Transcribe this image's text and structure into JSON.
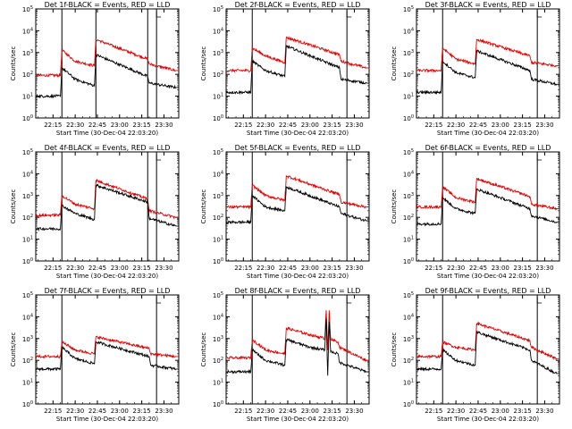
{
  "window": {
    "background": "#ffffff"
  },
  "chart_data": [
    {
      "type": "line",
      "title": "Det 1f-BLACK = Events, RED = LLD",
      "xlabel": "Start Time (30-Dec-04 22:03:20)",
      "ylabel": "Counts/sec",
      "x_ticks": [
        "22:15",
        "22:30",
        "22:45",
        "23:00",
        "23:15",
        "23:30"
      ],
      "y_ticks": [
        "10^0",
        "10^1",
        "10^2",
        "10^3",
        "10^4",
        "10^5"
      ],
      "y_log": true,
      "xlim": [
        "22:03:20",
        "23:40:00"
      ],
      "ylim": [
        1,
        100000
      ],
      "vlines": [
        "22:21:00",
        "22:44:00",
        "23:19:00",
        "23:25:00"
      ],
      "series": [
        {
          "name": "RED",
          "color": "#e00000",
          "x": [
            "22:03:20",
            "22:20:00",
            "22:21:00",
            "22:30:00",
            "22:43:00",
            "22:44:00",
            "23:19:00",
            "23:20:00",
            "23:38:00"
          ],
          "values": [
            90,
            90,
            1300,
            400,
            250,
            4000,
            500,
            300,
            150
          ]
        },
        {
          "name": "BLACK",
          "color": "#000000",
          "x": [
            "22:03:20",
            "22:20:00",
            "22:21:00",
            "22:30:00",
            "22:43:00",
            "22:44:00",
            "23:19:00",
            "23:20:00",
            "23:38:00"
          ],
          "values": [
            10,
            10,
            200,
            60,
            30,
            800,
            80,
            40,
            25
          ]
        }
      ]
    },
    {
      "type": "line",
      "title": "Det 2f-BLACK = Events, RED = LLD",
      "xlabel": "Start Time (30-Dec-04 22:03:20)",
      "ylabel": "Counts/sec",
      "x_ticks": [
        "22:15",
        "22:30",
        "22:45",
        "23:00",
        "23:15",
        "23:30"
      ],
      "y_ticks": [
        "10^0",
        "10^1",
        "10^2",
        "10^3",
        "10^4",
        "10^5"
      ],
      "y_log": true,
      "xlim": [
        "22:03:20",
        "23:40:00"
      ],
      "ylim": [
        1,
        100000
      ],
      "vlines": [
        "22:21:00",
        "23:25:00"
      ],
      "series": [
        {
          "name": "RED",
          "color": "#e00000",
          "x": [
            "22:03:20",
            "22:20:00",
            "22:21:00",
            "22:30:00",
            "22:43:00",
            "22:44:00",
            "23:20:00",
            "23:21:00",
            "23:38:00"
          ],
          "values": [
            150,
            150,
            1600,
            700,
            350,
            5000,
            800,
            400,
            200
          ]
        },
        {
          "name": "BLACK",
          "color": "#000000",
          "x": [
            "22:03:20",
            "22:20:00",
            "22:21:00",
            "22:30:00",
            "22:43:00",
            "22:44:00",
            "23:20:00",
            "23:21:00",
            "23:38:00"
          ],
          "values": [
            15,
            15,
            400,
            150,
            80,
            2000,
            200,
            60,
            40
          ]
        }
      ]
    },
    {
      "type": "line",
      "title": "Det 3f-BLACK = Events, RED = LLD",
      "xlabel": "Start Time (30-Dec-04 22:03:20)",
      "ylabel": "Counts/sec",
      "x_ticks": [
        "22:15",
        "22:30",
        "22:45",
        "23:00",
        "23:15",
        "23:30"
      ],
      "y_ticks": [
        "10^0",
        "10^1",
        "10^2",
        "10^3",
        "10^4",
        "10^5"
      ],
      "y_log": true,
      "xlim": [
        "22:03:20",
        "23:40:00"
      ],
      "ylim": [
        1,
        100000
      ],
      "vlines": [
        "22:21:00",
        "23:25:00"
      ],
      "series": [
        {
          "name": "RED",
          "color": "#e00000",
          "x": [
            "22:03:20",
            "22:20:00",
            "22:21:00",
            "22:30:00",
            "22:43:00",
            "22:44:00",
            "23:20:00",
            "23:21:00",
            "23:38:00"
          ],
          "values": [
            150,
            150,
            1600,
            500,
            300,
            4000,
            700,
            350,
            250
          ]
        },
        {
          "name": "BLACK",
          "color": "#000000",
          "x": [
            "22:03:20",
            "22:20:00",
            "22:21:00",
            "22:30:00",
            "22:43:00",
            "22:44:00",
            "23:20:00",
            "23:21:00",
            "23:38:00"
          ],
          "values": [
            15,
            15,
            400,
            120,
            70,
            1200,
            150,
            60,
            35
          ]
        }
      ]
    },
    {
      "type": "line",
      "title": "Det 4f-BLACK = Events, RED = LLD",
      "xlabel": "Start Time (30-Dec-04 22:03:20)",
      "ylabel": "Counts/sec",
      "x_ticks": [
        "22:15",
        "22:30",
        "22:45",
        "23:00",
        "23:15",
        "23:30"
      ],
      "y_ticks": [
        "10^0",
        "10^1",
        "10^2",
        "10^3",
        "10^4",
        "10^5"
      ],
      "y_log": true,
      "xlim": [
        "22:03:20",
        "23:40:00"
      ],
      "ylim": [
        1,
        100000
      ],
      "vlines": [
        "22:21:00",
        "23:19:00",
        "23:25:00"
      ],
      "series": [
        {
          "name": "RED",
          "color": "#e00000",
          "x": [
            "22:03:20",
            "22:20:00",
            "22:21:00",
            "22:30:00",
            "22:43:00",
            "22:44:00",
            "23:19:00",
            "23:20:00",
            "23:38:00"
          ],
          "values": [
            120,
            130,
            1000,
            400,
            250,
            5000,
            700,
            200,
            100
          ]
        },
        {
          "name": "BLACK",
          "color": "#000000",
          "x": [
            "22:03:20",
            "22:20:00",
            "22:21:00",
            "22:30:00",
            "22:43:00",
            "22:44:00",
            "23:19:00",
            "23:20:00",
            "23:38:00"
          ],
          "values": [
            30,
            30,
            350,
            150,
            80,
            3000,
            500,
            90,
            40
          ]
        }
      ]
    },
    {
      "type": "line",
      "title": "Det 5f-BLACK = Events, RED = LLD",
      "xlabel": "Start Time (30-Dec-04 22:03:20)",
      "ylabel": "Counts/sec",
      "x_ticks": [
        "22:15",
        "22:30",
        "22:45",
        "23:00",
        "23:15",
        "23:30"
      ],
      "y_ticks": [
        "10^0",
        "10^1",
        "10^2",
        "10^3",
        "10^4",
        "10^5"
      ],
      "y_log": true,
      "xlim": [
        "22:03:20",
        "23:40:00"
      ],
      "ylim": [
        1,
        100000
      ],
      "vlines": [
        "22:21:00",
        "23:25:00"
      ],
      "series": [
        {
          "name": "RED",
          "color": "#e00000",
          "x": [
            "22:03:20",
            "22:20:00",
            "22:21:00",
            "22:30:00",
            "22:43:00",
            "22:44:00",
            "23:20:00",
            "23:21:00",
            "23:38:00"
          ],
          "values": [
            300,
            300,
            3000,
            1000,
            600,
            8000,
            1100,
            500,
            300
          ]
        },
        {
          "name": "BLACK",
          "color": "#000000",
          "x": [
            "22:03:20",
            "22:20:00",
            "22:21:00",
            "22:30:00",
            "22:43:00",
            "22:44:00",
            "23:20:00",
            "23:21:00",
            "23:38:00"
          ],
          "values": [
            60,
            60,
            1000,
            300,
            200,
            2500,
            300,
            150,
            70
          ]
        }
      ]
    },
    {
      "type": "line",
      "title": "Det 6f-BLACK = Events, RED = LLD",
      "xlabel": "Start Time (30-Dec-04 22:03:20)",
      "ylabel": "Counts/sec",
      "x_ticks": [
        "22:15",
        "22:30",
        "22:45",
        "23:00",
        "23:15",
        "23:30"
      ],
      "y_ticks": [
        "10^0",
        "10^1",
        "10^2",
        "10^3",
        "10^4",
        "10^5"
      ],
      "y_log": true,
      "xlim": [
        "22:03:20",
        "23:40:00"
      ],
      "ylim": [
        1,
        100000
      ],
      "vlines": [
        "22:21:00",
        "23:25:00"
      ],
      "series": [
        {
          "name": "RED",
          "color": "#e00000",
          "x": [
            "22:03:20",
            "22:20:00",
            "22:21:00",
            "22:30:00",
            "22:43:00",
            "22:44:00",
            "23:20:00",
            "23:21:00",
            "23:38:00"
          ],
          "values": [
            300,
            300,
            2500,
            800,
            500,
            6000,
            900,
            400,
            250
          ]
        },
        {
          "name": "BLACK",
          "color": "#000000",
          "x": [
            "22:03:20",
            "22:20:00",
            "22:21:00",
            "22:30:00",
            "22:43:00",
            "22:44:00",
            "23:20:00",
            "23:21:00",
            "23:38:00"
          ],
          "values": [
            50,
            50,
            800,
            250,
            150,
            2000,
            250,
            120,
            60
          ]
        }
      ]
    },
    {
      "type": "line",
      "title": "Det 7f-BLACK = Events, RED = LLD",
      "xlabel": "Start Time (30-Dec-04 22:03:20)",
      "ylabel": "Counts/sec",
      "x_ticks": [
        "22:15",
        "22:30",
        "22:45",
        "23:00",
        "23:15",
        "23:30"
      ],
      "y_ticks": [
        "10^0",
        "10^1",
        "10^2",
        "10^3",
        "10^4",
        "10^5"
      ],
      "y_log": true,
      "xlim": [
        "22:03:20",
        "23:40:00"
      ],
      "ylim": [
        1,
        100000
      ],
      "vlines": [
        "22:21:00",
        "23:25:00"
      ],
      "series": [
        {
          "name": "RED",
          "color": "#e00000",
          "x": [
            "22:03:20",
            "22:20:00",
            "22:21:00",
            "22:30:00",
            "22:43:00",
            "22:44:00",
            "23:20:00",
            "23:21:00",
            "23:38:00"
          ],
          "values": [
            150,
            150,
            700,
            300,
            200,
            1200,
            350,
            200,
            150
          ]
        },
        {
          "name": "BLACK",
          "color": "#000000",
          "x": [
            "22:03:20",
            "22:20:00",
            "22:21:00",
            "22:30:00",
            "22:43:00",
            "22:44:00",
            "23:20:00",
            "23:21:00",
            "23:38:00"
          ],
          "values": [
            40,
            40,
            400,
            120,
            70,
            700,
            150,
            60,
            40
          ]
        }
      ]
    },
    {
      "type": "line",
      "title": "Det 8f-BLACK = Events, RED = LLD",
      "xlabel": "Start Time (30-Dec-04 22:03:20)",
      "ylabel": "Counts/sec",
      "x_ticks": [
        "22:15",
        "22:30",
        "22:45",
        "23:00",
        "23:15",
        "23:30"
      ],
      "y_ticks": [
        "10^0",
        "10^1",
        "10^2",
        "10^3",
        "10^4",
        "10^5"
      ],
      "y_log": true,
      "xlim": [
        "22:03:20",
        "23:40:00"
      ],
      "ylim": [
        1,
        100000
      ],
      "vlines": [
        "22:21:00",
        "23:25:00"
      ],
      "series": [
        {
          "name": "RED",
          "color": "#e00000",
          "x": [
            "22:03:20",
            "22:20:00",
            "22:21:00",
            "22:30:00",
            "22:43:00",
            "22:44:00",
            "23:00:00",
            "23:10:00",
            "23:11:00",
            "23:12:00",
            "23:13:00",
            "23:14:00",
            "23:19:00",
            "23:20:00",
            "23:38:00"
          ],
          "values": [
            130,
            130,
            900,
            300,
            200,
            3000,
            1500,
            1000,
            20000,
            300,
            20000,
            900,
            700,
            400,
            100
          ]
        },
        {
          "name": "BLACK",
          "color": "#000000",
          "x": [
            "22:03:20",
            "22:20:00",
            "22:21:00",
            "22:30:00",
            "22:43:00",
            "22:44:00",
            "23:00:00",
            "23:10:00",
            "23:11:00",
            "23:12:00",
            "23:13:00",
            "23:14:00",
            "23:19:00",
            "23:20:00",
            "23:38:00"
          ],
          "values": [
            30,
            30,
            300,
            100,
            60,
            900,
            400,
            300,
            8000,
            20,
            6000,
            250,
            200,
            80,
            30
          ]
        }
      ]
    },
    {
      "type": "line",
      "title": "Det 9f-BLACK = Events, RED = LLD",
      "xlabel": "Start Time (30-Dec-04 22:03:20)",
      "ylabel": "Counts/sec",
      "x_ticks": [
        "22:15",
        "22:30",
        "22:45",
        "23:00",
        "23:15",
        "23:30"
      ],
      "y_ticks": [
        "10^0",
        "10^1",
        "10^2",
        "10^3",
        "10^4",
        "10^5"
      ],
      "y_log": true,
      "xlim": [
        "22:03:20",
        "23:40:00"
      ],
      "ylim": [
        1,
        100000
      ],
      "vlines": [
        "22:21:00",
        "23:25:00"
      ],
      "series": [
        {
          "name": "RED",
          "color": "#e00000",
          "x": [
            "22:03:20",
            "22:20:00",
            "22:21:00",
            "22:30:00",
            "22:43:00",
            "22:44:00",
            "23:20:00",
            "23:21:00",
            "23:38:00"
          ],
          "values": [
            150,
            150,
            700,
            400,
            300,
            5000,
            800,
            400,
            120
          ]
        },
        {
          "name": "BLACK",
          "color": "#000000",
          "x": [
            "22:03:20",
            "22:20:00",
            "22:21:00",
            "22:30:00",
            "22:43:00",
            "22:44:00",
            "23:20:00",
            "23:21:00",
            "23:38:00"
          ],
          "values": [
            40,
            40,
            300,
            100,
            60,
            2000,
            300,
            100,
            25
          ]
        }
      ]
    }
  ]
}
